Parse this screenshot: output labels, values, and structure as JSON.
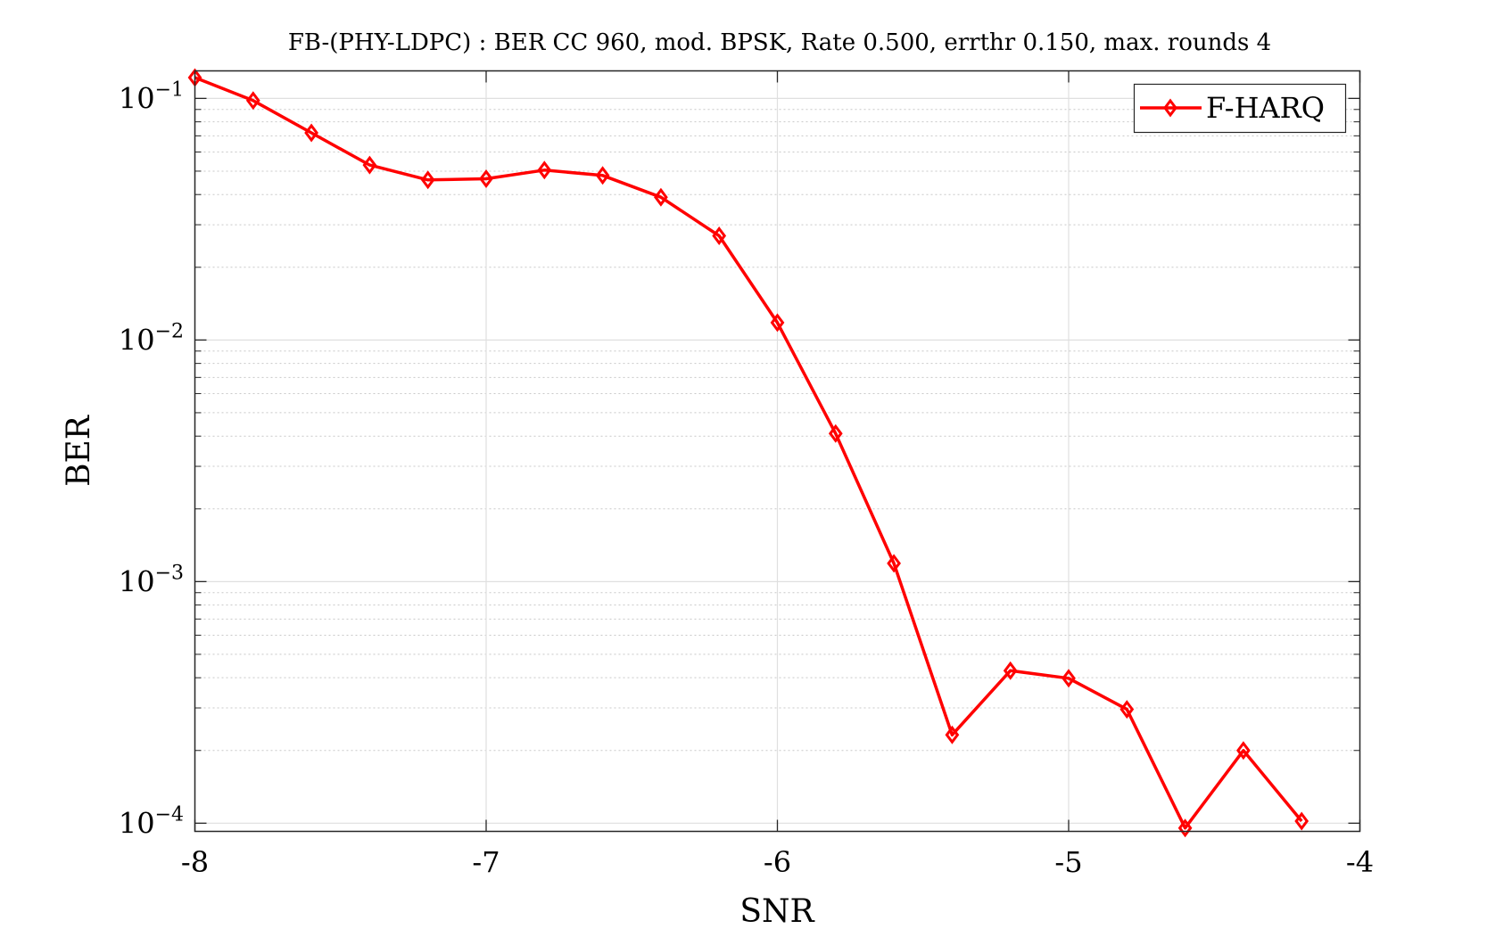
{
  "chart_data": {
    "type": "line",
    "title": "FB-(PHY-LDPC) : BER CC 960, mod. BPSK, Rate 0.500, errthr 0.150, max. rounds 4",
    "xlabel": "SNR",
    "ylabel": "BER",
    "xlim": [
      -8,
      -4
    ],
    "ylim": [
      9.25e-05,
      0.13
    ],
    "yscale": "log",
    "grid": true,
    "legend_position": "top-right",
    "x_ticks": [
      {
        "value": -8,
        "label": "-8"
      },
      {
        "value": -7,
        "label": "-7"
      },
      {
        "value": -6,
        "label": "-6"
      },
      {
        "value": -5,
        "label": "-5"
      },
      {
        "value": -4,
        "label": "-4"
      }
    ],
    "y_ticks": [
      {
        "value": 0.1,
        "base": "10",
        "exp": "−1"
      },
      {
        "value": 0.01,
        "base": "10",
        "exp": "−2"
      },
      {
        "value": 0.001,
        "base": "10",
        "exp": "−3"
      },
      {
        "value": 0.0001,
        "base": "10",
        "exp": "−4"
      }
    ],
    "series": [
      {
        "name": "F-HARQ",
        "color": "#ff0000",
        "marker": "diamond",
        "x": [
          -8.0,
          -7.8,
          -7.6,
          -7.4,
          -7.2,
          -7.0,
          -6.8,
          -6.6,
          -6.4,
          -6.2,
          -6.0,
          -5.8,
          -5.6,
          -5.4,
          -5.2,
          -5.0,
          -4.8,
          -4.6,
          -4.4,
          -4.2
        ],
        "y": [
          0.122,
          0.098,
          0.072,
          0.053,
          0.046,
          0.0465,
          0.0505,
          0.048,
          0.039,
          0.027,
          0.0118,
          0.0041,
          0.00119,
          0.000232,
          0.000428,
          0.000398,
          0.000296,
          9.55e-05,
          0.0002,
          0.000102
        ]
      }
    ]
  }
}
